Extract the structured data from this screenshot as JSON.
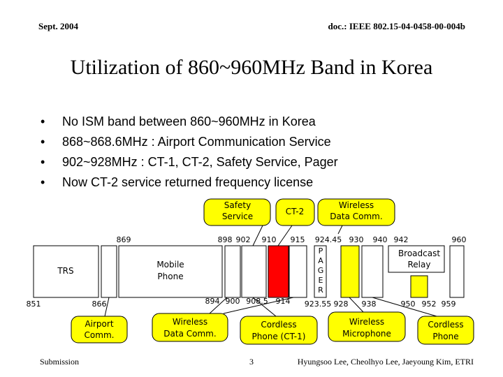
{
  "header": {
    "date": "Sept. 2004",
    "doc_id": "doc.: IEEE 802.15-04-0458-00-004b"
  },
  "title": "Utilization of 860~960MHz Band in Korea",
  "bullets": [
    "No ISM band between 860~960MHz in Korea",
    "868~868.6MHz : Airport Communication Service",
    "902~928MHz : CT-1, CT-2, Safety Service, Pager",
    "Now CT-2 service returned frequency license"
  ],
  "diagram": {
    "top_labels": {
      "safety_service": [
        "Safety",
        "Service"
      ],
      "ct2": "CT-2",
      "wireless_data_top": [
        "Wireless",
        "Data Comm."
      ]
    },
    "top_freqs": {
      "f869": "869",
      "f898": "898",
      "f902": "902",
      "f910": "910",
      "f915": "915",
      "f924_45": "924.45",
      "f930": "930",
      "f940": "940",
      "f942": "942",
      "f960": "960"
    },
    "bottom_freqs": {
      "f851": "851",
      "f866": "866",
      "f894": "894",
      "f900": "900",
      "f908_5": "908.5",
      "f914": "914",
      "f923_55": "923.55",
      "f928": "928",
      "f938": "938",
      "f950": "950",
      "f952": "952",
      "f959": "959"
    },
    "band_labels": {
      "trs": "TRS",
      "mobile_phone": [
        "Mobile",
        "Phone"
      ],
      "pager": [
        "P",
        "A",
        "G",
        "E",
        "R"
      ],
      "broadcast_relay": [
        "Broadcast",
        "Relay"
      ]
    },
    "bottom_labels": {
      "airport": [
        "Airport",
        "Comm."
      ],
      "wireless_data_bottom": [
        "Wireless",
        "Data Comm."
      ],
      "cordless_ct1": [
        "Cordless",
        "Phone (CT-1)"
      ],
      "wireless_mic": [
        "Wireless",
        "Microphone"
      ],
      "cordless_phone": [
        "Cordless",
        "Phone"
      ]
    },
    "colors": {
      "ct2_band": "#ff0000",
      "wireless_mic_band": "#ffff00",
      "broadcast_relay_band": "#ffff00",
      "callout_fill": "#ffff00"
    }
  },
  "footer": {
    "left": "Submission",
    "page": "3",
    "authors": "Hyungsoo Lee, Cheolhyo Lee, Jaeyoung Kim, ETRI"
  }
}
